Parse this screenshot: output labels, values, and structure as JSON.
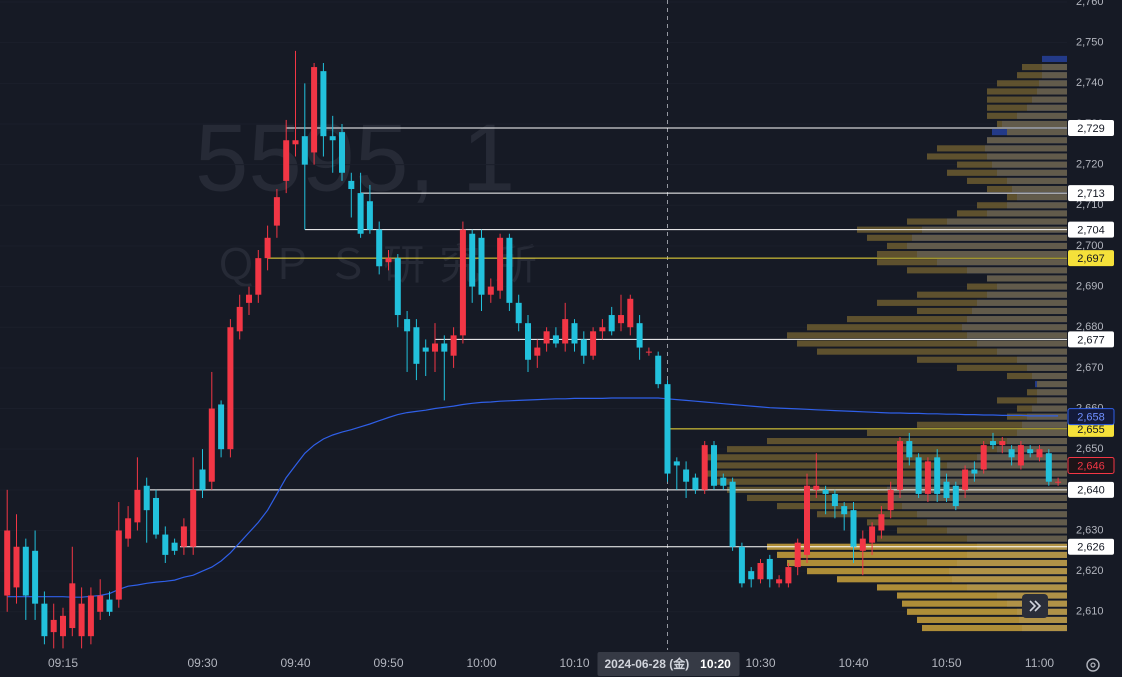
{
  "chart_data": {
    "type": "candlestick",
    "watermark_title": "5595, 1",
    "watermark_subtitle": "ＱＰＳ研究所",
    "categories": [
      null,
      null,
      null,
      null,
      null,
      null,
      "09:15",
      null,
      null,
      null,
      null,
      null,
      null,
      null,
      null,
      null,
      null,
      null,
      null,
      null,
      null,
      "09:30",
      null,
      null,
      null,
      null,
      null,
      null,
      null,
      null,
      null,
      "09:40",
      null,
      null,
      null,
      null,
      null,
      null,
      null,
      null,
      null,
      "09:50",
      null,
      null,
      null,
      null,
      null,
      null,
      null,
      null,
      null,
      "10:00",
      null,
      null,
      null,
      null,
      null,
      null,
      null,
      null,
      null,
      "10:10",
      null,
      null,
      null,
      null,
      null,
      null,
      null,
      null,
      null,
      "10:20",
      null,
      null,
      null,
      null,
      null,
      null,
      null,
      null,
      null,
      "10:30",
      null,
      null,
      null,
      null,
      null,
      null,
      null,
      null,
      null,
      "10:40",
      null,
      null,
      null,
      null,
      null,
      null,
      null,
      null,
      null,
      "10:50",
      null,
      null,
      null,
      null,
      null,
      null,
      null,
      null,
      null,
      "11:00",
      null,
      null
    ],
    "open": [
      2614,
      2616,
      2626,
      2625,
      2612,
      2605,
      2604,
      2606,
      2604,
      2604,
      2610,
      2613,
      2613,
      2628,
      2632,
      2641,
      2638,
      2629,
      2627,
      2626,
      2626,
      2645,
      2642,
      2661,
      2650,
      2679,
      2686,
      2688,
      2697,
      2705,
      2716,
      2725,
      2727,
      2723,
      2743,
      2727,
      2728,
      2716,
      2713,
      2711,
      2704,
      2696,
      2697,
      2682,
      2680,
      2675,
      2674,
      2676,
      2673,
      2678,
      2703,
      2702,
      2688,
      2689,
      2702,
      2686,
      2681,
      2673,
      2676,
      2678,
      2676,
      2681,
      2677,
      2673,
      2679,
      2683,
      2681,
      2680,
      2681,
      2674,
      2673,
      2666,
      2647,
      2645,
      2643,
      2640,
      2651,
      2643,
      2642,
      2626,
      2620,
      2618,
      2623,
      2617,
      2617,
      2621,
      2624,
      2640,
      2640,
      2639,
      2636,
      2635,
      2625,
      2627,
      2630,
      2635,
      2640,
      2652,
      2648,
      2639,
      2648,
      2642,
      2641,
      2640,
      2645,
      2645,
      2652,
      2651,
      2650,
      2646,
      2650,
      2648,
      2649,
      2642
    ],
    "high": [
      2640,
      2634,
      2628,
      2630,
      2615,
      2612,
      2611,
      2626,
      2616,
      2616,
      2618,
      2615,
      2637,
      2636,
      2648,
      2643,
      2640,
      2631,
      2628,
      2633,
      2648,
      2650,
      2669,
      2662,
      2682,
      2688,
      2690,
      2699,
      2705,
      2714,
      2731,
      2748,
      2740,
      2745,
      2745,
      2732,
      2730,
      2718,
      2718,
      2715,
      2706,
      2699,
      2698,
      2684,
      2682,
      2677,
      2681,
      2678,
      2680,
      2706,
      2704,
      2704,
      2692,
      2703,
      2703,
      2688,
      2683,
      2677,
      2680,
      2680,
      2686,
      2682,
      2679,
      2680,
      2682,
      2685,
      2688,
      2688,
      2683,
      2675,
      2674,
      2667,
      2648,
      2647,
      2644,
      2652,
      2652,
      2644,
      2643,
      2627,
      2621,
      2623,
      2624,
      2619,
      2622,
      2628,
      2644,
      2649,
      2641,
      2640,
      2637,
      2637,
      2630,
      2632,
      2636,
      2642,
      2653,
      2654,
      2649,
      2648,
      2650,
      2644,
      2642,
      2646,
      2647,
      2652,
      2654,
      2653,
      2651,
      2652,
      2651,
      2651,
      2650,
      2643
    ],
    "low": [
      2610,
      2612,
      2608,
      2608,
      2602,
      2601,
      2601,
      2604,
      2601,
      2602,
      2608,
      2609,
      2611,
      2626,
      2630,
      2627,
      2628,
      2622,
      2624,
      2624,
      2624,
      2638,
      2640,
      2648,
      2648,
      2677,
      2683,
      2686,
      2694,
      2702,
      2713,
      2722,
      2704,
      2720,
      2722,
      2718,
      2716,
      2707,
      2702,
      2703,
      2693,
      2694,
      2680,
      2669,
      2667,
      2668,
      2669,
      2662,
      2670,
      2676,
      2686,
      2684,
      2686,
      2687,
      2684,
      2679,
      2669,
      2670,
      2674,
      2675,
      2674,
      2674,
      2671,
      2672,
      2677,
      2678,
      2679,
      2678,
      2672,
      2673,
      2665,
      2642,
      2640,
      2638,
      2639,
      2639,
      2640,
      2640,
      2625,
      2616,
      2616,
      2617,
      2616,
      2616,
      2616,
      2619,
      2622,
      2638,
      2634,
      2633,
      2630,
      2622,
      2619,
      2624,
      2628,
      2633,
      2638,
      2646,
      2638,
      2637,
      2637,
      2637,
      2635,
      2638,
      2642,
      2644,
      2650,
      2649,
      2646,
      2645,
      2648,
      2647,
      2641,
      2641
    ],
    "close": [
      2630,
      2626,
      2614,
      2612,
      2604,
      2608,
      2609,
      2617,
      2612,
      2614,
      2614,
      2610,
      2630,
      2633,
      2640,
      2635,
      2629,
      2624,
      2625,
      2631,
      2640,
      2640,
      2660,
      2650,
      2680,
      2685,
      2688,
      2697,
      2702,
      2712,
      2726,
      2726,
      2720,
      2744,
      2727,
      2726,
      2718,
      2714,
      2703,
      2704,
      2695,
      2697,
      2683,
      2679,
      2671,
      2674,
      2676,
      2674,
      2678,
      2704,
      2690,
      2688,
      2690,
      2702,
      2686,
      2681,
      2672,
      2675,
      2679,
      2676,
      2682,
      2676,
      2673,
      2679,
      2680,
      2679,
      2683,
      2687,
      2675,
      2674,
      2666,
      2644,
      2646,
      2642,
      2640,
      2651,
      2641,
      2641,
      2626,
      2617,
      2618,
      2622,
      2618,
      2618,
      2621,
      2627,
      2641,
      2641,
      2639,
      2636,
      2634,
      2626,
      2628,
      2631,
      2634,
      2640,
      2652,
      2648,
      2639,
      2647,
      2639,
      2638,
      2636,
      2645,
      2644,
      2651,
      2651,
      2652,
      2648,
      2651,
      2649,
      2650,
      2642,
      2642
    ],
    "up_color": "#f23645",
    "down_color": "#22c1dc",
    "vwap": {
      "color": "#2f5fe8",
      "values": [
        2613.7,
        2613.7,
        2613.7,
        2613.7,
        2613.7,
        2613.7,
        2613.7,
        2613.6,
        2613.6,
        2613.8,
        2614.0,
        2614.5,
        2615.5,
        2616.3,
        2616.6,
        2617.0,
        2617.3,
        2617.5,
        2617.8,
        2618.5,
        2619.0,
        2620.0,
        2621.0,
        2622.5,
        2624.5,
        2627.0,
        2629.5,
        2632.0,
        2635.0,
        2639.0,
        2643.0,
        2646.0,
        2649.0,
        2651.0,
        2652.5,
        2653.5,
        2654.2,
        2654.8,
        2655.5,
        2656.2,
        2657.0,
        2657.8,
        2658.5,
        2659.0,
        2659.3,
        2659.6,
        2660.0,
        2660.3,
        2660.6,
        2661.0,
        2661.3,
        2661.5,
        2661.6,
        2661.8,
        2661.9,
        2662.0,
        2662.1,
        2662.2,
        2662.3,
        2662.4,
        2662.4,
        2662.5,
        2662.5,
        2662.5,
        2662.5,
        2662.6,
        2662.6,
        2662.6,
        2662.6,
        2662.6,
        2662.6,
        2662.4,
        2662.2,
        2662.0,
        2661.8,
        2661.6,
        2661.4,
        2661.2,
        2661.0,
        2660.8,
        2660.6,
        2660.4,
        2660.2,
        2660.1,
        2660.0,
        2659.9,
        2659.8,
        2659.7,
        2659.6,
        2659.5,
        2659.4,
        2659.3,
        2659.2,
        2659.1,
        2659.0,
        2658.9,
        2658.9,
        2658.8,
        2658.8,
        2658.7,
        2658.7,
        2658.6,
        2658.6,
        2658.5,
        2658.5,
        2658.4,
        2658.4,
        2658.3,
        2658.3,
        2658.3,
        2658.2,
        2658.2,
        2658.2,
        2658.2
      ],
      "last": {
        "value": 2658,
        "label": "2,658"
      }
    },
    "price": {
      "value": 2646,
      "label": "2,646",
      "color": "#f23645"
    },
    "levels": [
      {
        "value": 2729,
        "label": "2,729",
        "color": "#ffffff"
      },
      {
        "value": 2713,
        "label": "2,713",
        "color": "#ffffff"
      },
      {
        "value": 2704,
        "label": "2,704",
        "color": "#ffffff"
      },
      {
        "value": 2697,
        "label": "2,697",
        "color": "#f5e13a"
      },
      {
        "value": 2677,
        "label": "2,677",
        "color": "#ffffff"
      },
      {
        "value": 2655,
        "label": "2,655",
        "color": "#f5e13a"
      },
      {
        "value": 2640,
        "label": "2,640",
        "color": "#ffffff"
      },
      {
        "value": 2626,
        "label": "2,626",
        "color": "#ffffff"
      }
    ],
    "profile": {
      "prices": [
        2606,
        2608,
        2610,
        2612,
        2614,
        2616,
        2618,
        2620,
        2622,
        2624,
        2626,
        2628,
        2630,
        2632,
        2634,
        2636,
        2638,
        2640,
        2642,
        2644,
        2646,
        2648,
        2650,
        2652,
        2654,
        2656,
        2658,
        2660,
        2662,
        2664,
        2666,
        2668,
        2670,
        2672,
        2674,
        2676,
        2678,
        2680,
        2682,
        2684,
        2686,
        2688,
        2690,
        2692,
        2694,
        2696,
        2698,
        2700,
        2702,
        2704,
        2706,
        2708,
        2710,
        2712,
        2714,
        2716,
        2718,
        2720,
        2722,
        2724,
        2726,
        2728,
        2730,
        2732,
        2734,
        2736,
        2738,
        2740,
        2742,
        2744,
        2746
      ],
      "blue": {
        "color": "#26419a",
        "values": [
          45,
          48,
          50,
          60,
          70,
          100,
          115,
          118,
          110,
          100,
          90,
          100,
          120,
          140,
          150,
          165,
          175,
          180,
          170,
          140,
          120,
          90,
          70,
          60,
          50,
          45,
          40,
          35,
          30,
          30,
          32,
          35,
          40,
          50,
          70,
          90,
          100,
          105,
          100,
          95,
          90,
          80,
          70,
          80,
          100,
          130,
          150,
          160,
          155,
          145,
          120,
          80,
          60,
          50,
          55,
          60,
          70,
          75,
          80,
          82,
          80,
          75,
          65,
          50,
          40,
          35,
          30,
          28,
          25,
          25,
          25
        ]
      },
      "gold": {
        "color": "#7d6a32",
        "values": [
          145,
          150,
          160,
          165,
          170,
          190,
          230,
          260,
          280,
          290,
          300,
          190,
          170,
          200,
          250,
          290,
          320,
          340,
          350,
          360,
          355,
          360,
          340,
          300,
          200,
          150,
          60,
          50,
          70,
          40,
          30,
          60,
          110,
          150,
          250,
          270,
          280,
          260,
          220,
          150,
          190,
          150,
          100,
          80,
          160,
          190,
          190,
          180,
          200,
          210,
          160,
          110,
          90,
          60,
          80,
          100,
          120,
          110,
          140,
          130,
          80,
          60,
          70,
          80,
          80,
          80,
          80,
          70,
          50,
          45,
          0
        ]
      },
      "value_area": [
        2606,
        2626
      ],
      "value_area_color": "#c9a23c"
    },
    "crosshair": {
      "label": "2024-06-28 (金)",
      "x": "10:20"
    },
    "ylim": [
      2600.6,
      2760.5
    ],
    "yticks": [
      {
        "value": 2610,
        "label": "2,610"
      },
      {
        "value": 2620,
        "label": "2,620"
      },
      {
        "value": 2630,
        "label": "2,630"
      },
      {
        "value": 2640,
        "label": "2,640"
      },
      {
        "value": 2650,
        "label": "2,650"
      },
      {
        "value": 2660,
        "label": "2,660"
      },
      {
        "value": 2670,
        "label": "2,670"
      },
      {
        "value": 2680,
        "label": "2,680"
      },
      {
        "value": 2690,
        "label": "2,690"
      },
      {
        "value": 2700,
        "label": "2,700"
      },
      {
        "value": 2710,
        "label": "2,710"
      },
      {
        "value": 2720,
        "label": "2,720"
      },
      {
        "value": 2730,
        "label": "2,730"
      },
      {
        "value": 2740,
        "label": "2,740"
      },
      {
        "value": 2750,
        "label": "2,750"
      },
      {
        "value": 2760,
        "label": "2,760"
      }
    ],
    "grid": true
  }
}
